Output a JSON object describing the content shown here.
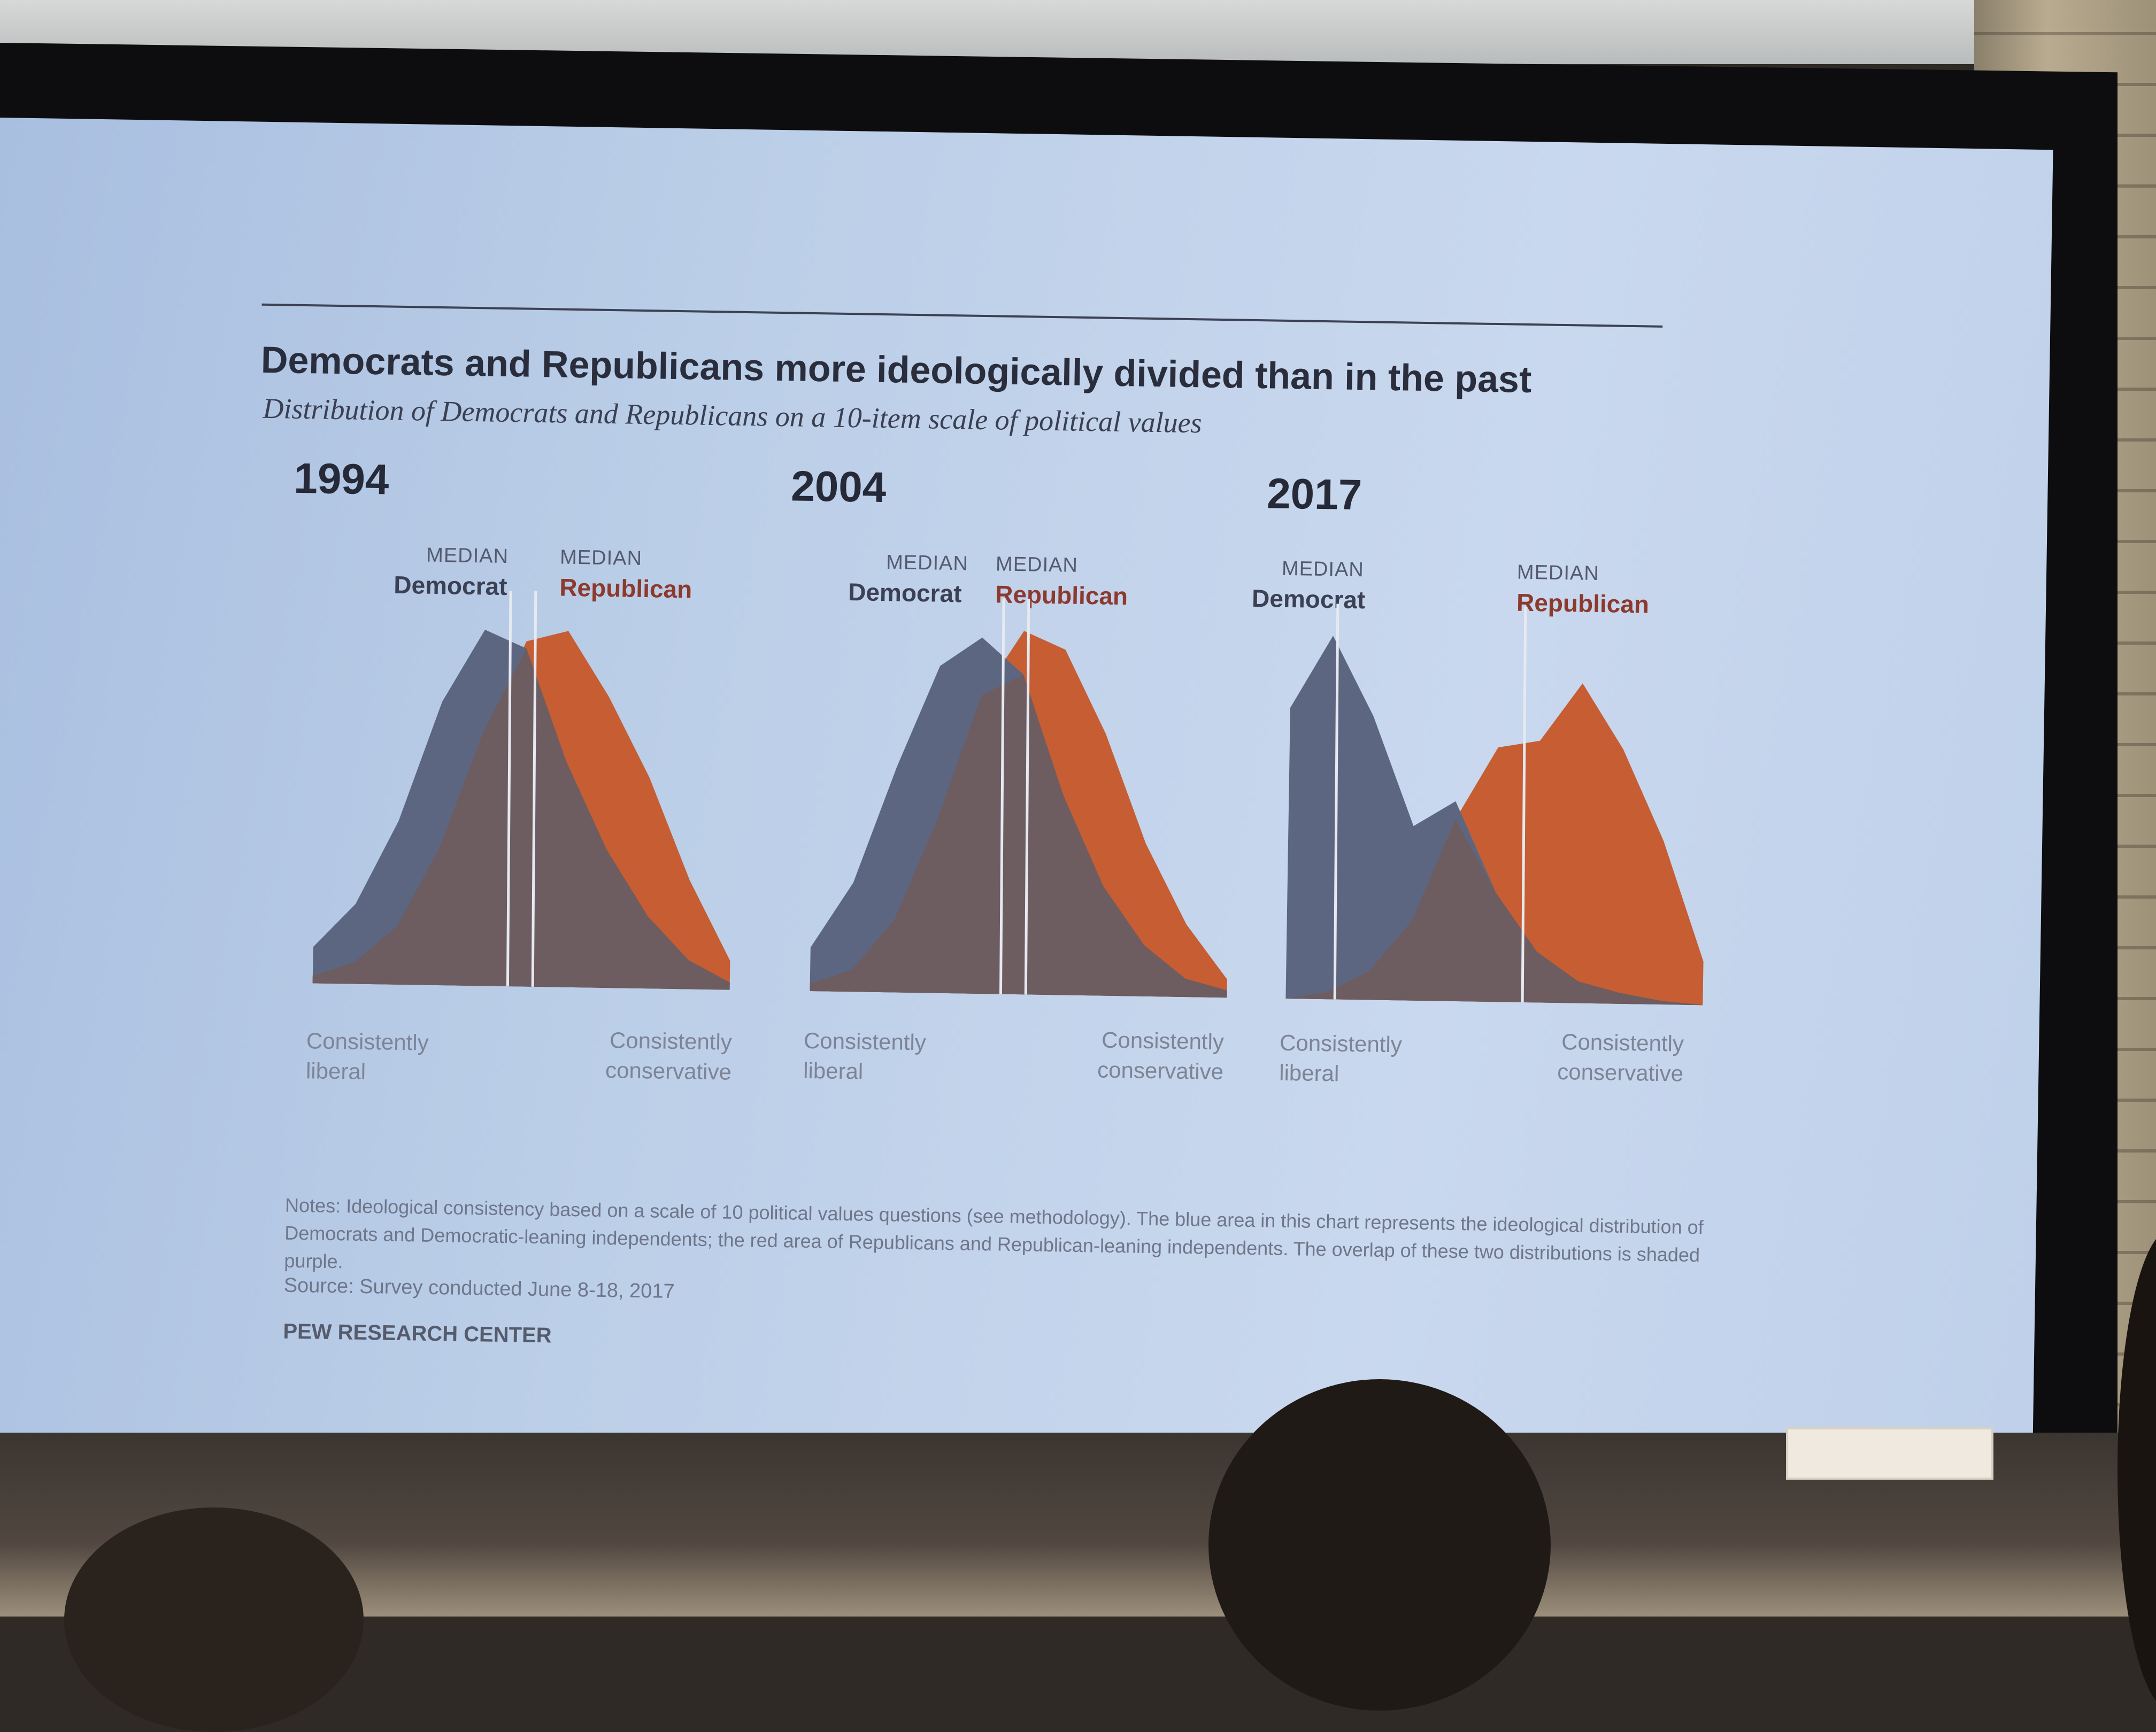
{
  "slide": {
    "title": "Democrats and Republicans more ideologically divided than in the past",
    "subtitle": "Distribution of Democrats and Republicans on a 10-item scale of political values",
    "notes": "Notes: Ideological consistency based on a scale of 10 political values questions (see methodology). The blue area in this chart represents the ideological distribution of Democrats and Democratic-leaning independents; the red area of Republicans and Republican-leaning independents. The overlap of these two distributions is shaded purple.",
    "source": "Source: Survey conducted June 8-18, 2017",
    "credit": "PEW RESEARCH CENTER"
  },
  "labels": {
    "median": "MEDIAN",
    "democrat": "Democrat",
    "republican": "Republican",
    "liberal_line1": "Consistently",
    "liberal_line2": "liberal",
    "conservative_line1": "Consistently",
    "conservative_line2": "conservative"
  },
  "colors": {
    "democrat": "#5c6680",
    "republican": "#c65d33",
    "overlap": "#6d5c60",
    "median_line": "#e6e9f0"
  },
  "chart_data": [
    {
      "type": "area",
      "year": "1994",
      "x": [
        -10,
        -8,
        -6,
        -4,
        -2,
        0,
        2,
        4,
        6,
        8,
        10
      ],
      "series": [
        {
          "name": "Democrat",
          "values": [
            0.1,
            0.22,
            0.45,
            0.78,
            0.98,
            0.93,
            0.62,
            0.38,
            0.2,
            0.08,
            0.02
          ]
        },
        {
          "name": "Republican",
          "values": [
            0.02,
            0.06,
            0.16,
            0.38,
            0.7,
            0.95,
            0.98,
            0.8,
            0.58,
            0.3,
            0.08
          ]
        }
      ],
      "median_democrat": -0.8,
      "median_republican": 0.4
    },
    {
      "type": "area",
      "year": "2004",
      "x": [
        -10,
        -8,
        -6,
        -4,
        -2,
        0,
        2,
        4,
        6,
        8,
        10
      ],
      "series": [
        {
          "name": "Democrat",
          "values": [
            0.12,
            0.3,
            0.62,
            0.9,
            0.98,
            0.88,
            0.55,
            0.3,
            0.14,
            0.05,
            0.02
          ]
        },
        {
          "name": "Republican",
          "values": [
            0.02,
            0.06,
            0.2,
            0.48,
            0.82,
            1.0,
            0.95,
            0.72,
            0.42,
            0.2,
            0.05
          ]
        }
      ],
      "median_democrat": -1.0,
      "median_republican": 0.2
    },
    {
      "type": "area",
      "year": "2017",
      "x": [
        -10,
        -8,
        -6,
        -4,
        -2,
        0,
        2,
        4,
        6,
        8,
        10
      ],
      "series": [
        {
          "name": "Democrat",
          "values": [
            0.8,
            1.0,
            0.78,
            0.48,
            0.55,
            0.3,
            0.14,
            0.06,
            0.03,
            0.01,
            0.0
          ]
        },
        {
          "name": "Republican",
          "values": [
            0.0,
            0.02,
            0.08,
            0.22,
            0.5,
            0.7,
            0.72,
            0.88,
            0.7,
            0.45,
            0.12
          ]
        }
      ],
      "median_democrat": -7.8,
      "median_republican": 1.2
    }
  ]
}
